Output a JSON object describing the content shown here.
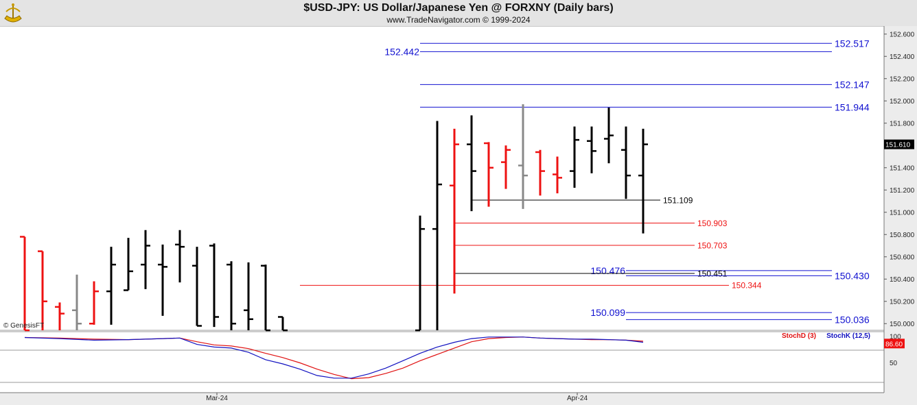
{
  "header": {
    "title": "$USD-JPY:  US Dollar/Japanese Yen @ FORXNY  (Daily bars)",
    "subtitle": "www.TradeNavigator.com © 1999-2024"
  },
  "copyright": "© GenesisFT",
  "indicator": {
    "stochd_label": "StochD (3)",
    "stochk_label": "StochK (12,5)"
  },
  "colors": {
    "up": "#000000",
    "down": "#ee1111",
    "neutral": "#888888",
    "blue": "#1010d0",
    "stochD": "#e01010",
    "stochK": "#1010c0"
  },
  "chart_data": {
    "type": "ohlc_bar",
    "ylim": [
      149.94,
      152.66
    ],
    "x_tick_labels": [
      "Mar-24",
      "Apr-24"
    ],
    "y_tick_labels": [
      "152.600",
      "152.400",
      "152.200",
      "152.000",
      "151.800",
      "151.600",
      "151.400",
      "151.200",
      "151.000",
      "150.800",
      "150.600",
      "150.400",
      "150.200",
      "150.000"
    ],
    "last_price": "151.610",
    "bars": [
      {
        "x": 36,
        "h": 150.78,
        "l": 149.9,
        "o": 150.78,
        "c": 149.9,
        "color": "down"
      },
      {
        "x": 62,
        "h": 150.65,
        "l": 149.9,
        "o": 150.65,
        "c": 150.2,
        "color": "down"
      },
      {
        "x": 87,
        "h": 150.19,
        "l": 149.9,
        "o": 150.15,
        "c": 150.09,
        "color": "down"
      },
      {
        "x": 112,
        "h": 150.44,
        "l": 149.9,
        "o": 150.12,
        "c": 150.0,
        "color": "neutral"
      },
      {
        "x": 137,
        "h": 150.38,
        "l": 149.99,
        "o": 150.0,
        "c": 150.29,
        "color": "down"
      },
      {
        "x": 162,
        "h": 150.69,
        "l": 149.99,
        "o": 150.29,
        "c": 150.53,
        "color": "up"
      },
      {
        "x": 187,
        "h": 150.77,
        "l": 150.3,
        "o": 150.3,
        "c": 150.47,
        "color": "up"
      },
      {
        "x": 212,
        "h": 150.84,
        "l": 150.31,
        "o": 150.53,
        "c": 150.7,
        "color": "up"
      },
      {
        "x": 237,
        "h": 150.71,
        "l": 150.07,
        "o": 150.53,
        "c": 150.51,
        "color": "up"
      },
      {
        "x": 262,
        "h": 150.84,
        "l": 150.37,
        "o": 150.71,
        "c": 150.69,
        "color": "up"
      },
      {
        "x": 287,
        "h": 150.69,
        "l": 149.98,
        "o": 150.52,
        "c": 149.98,
        "color": "up"
      },
      {
        "x": 312,
        "h": 150.72,
        "l": 149.97,
        "o": 150.7,
        "c": 150.06,
        "color": "up"
      },
      {
        "x": 337,
        "h": 150.56,
        "l": 149.93,
        "o": 150.53,
        "c": 150.0,
        "color": "up"
      },
      {
        "x": 362,
        "h": 150.55,
        "l": 149.93,
        "o": 150.12,
        "c": 150.04,
        "color": "up"
      },
      {
        "x": 387,
        "h": 150.53,
        "l": 149.93,
        "o": 150.52,
        "c": 149.93,
        "color": "up"
      },
      {
        "x": 412,
        "h": 150.06,
        "l": 149.93,
        "o": 150.06,
        "c": 149.93,
        "color": "up"
      },
      {
        "x": 612,
        "h": 150.97,
        "l": 149.93,
        "o": 149.93,
        "c": 150.85,
        "color": "up"
      },
      {
        "x": 637,
        "h": 151.82,
        "l": 149.93,
        "o": 150.85,
        "c": 151.25,
        "color": "up"
      },
      {
        "x": 662,
        "h": 151.75,
        "l": 150.27,
        "o": 151.24,
        "c": 151.61,
        "color": "down"
      },
      {
        "x": 687,
        "h": 151.87,
        "l": 151.01,
        "o": 151.61,
        "c": 151.37,
        "color": "up"
      },
      {
        "x": 712,
        "h": 151.63,
        "l": 151.05,
        "o": 151.62,
        "c": 151.4,
        "color": "down"
      },
      {
        "x": 737,
        "h": 151.6,
        "l": 151.21,
        "o": 151.45,
        "c": 151.56,
        "color": "down"
      },
      {
        "x": 762,
        "h": 151.97,
        "l": 151.03,
        "o": 151.42,
        "c": 151.33,
        "color": "neutral"
      },
      {
        "x": 787,
        "h": 151.56,
        "l": 151.15,
        "o": 151.54,
        "c": 151.37,
        "color": "down"
      },
      {
        "x": 812,
        "h": 151.5,
        "l": 151.17,
        "o": 151.34,
        "c": 151.31,
        "color": "down"
      },
      {
        "x": 837,
        "h": 151.77,
        "l": 151.22,
        "o": 151.37,
        "c": 151.65,
        "color": "up"
      },
      {
        "x": 862,
        "h": 151.77,
        "l": 151.35,
        "o": 151.64,
        "c": 151.55,
        "color": "up"
      },
      {
        "x": 887,
        "h": 151.94,
        "l": 151.44,
        "o": 151.66,
        "c": 151.69,
        "color": "up"
      },
      {
        "x": 912,
        "h": 151.77,
        "l": 151.12,
        "o": 151.56,
        "c": 151.33,
        "color": "up"
      },
      {
        "x": 937,
        "h": 151.75,
        "l": 150.81,
        "o": 151.33,
        "c": 151.61,
        "color": "up"
      }
    ],
    "levels": [
      {
        "value": 152.517,
        "label": "152.517",
        "color": "blue",
        "x1": 612,
        "x2": 1212,
        "label_side": "right"
      },
      {
        "value": 152.442,
        "label": "152.442",
        "color": "blue",
        "x1": 612,
        "x2": 1212,
        "label_side": "left"
      },
      {
        "value": 152.147,
        "label": "152.147",
        "color": "blue",
        "x1": 612,
        "x2": 1212,
        "label_side": "right"
      },
      {
        "value": 151.944,
        "label": "151.944",
        "color": "blue",
        "x1": 612,
        "x2": 1212,
        "label_side": "right"
      },
      {
        "value": 151.109,
        "label": "151.109",
        "color": "black",
        "x1": 687,
        "x2": 962,
        "label_side": "right"
      },
      {
        "value": 150.903,
        "label": "150.903",
        "color": "red",
        "x1": 662,
        "x2": 1012,
        "label_side": "right"
      },
      {
        "value": 150.703,
        "label": "150.703",
        "color": "red",
        "x1": 662,
        "x2": 1012,
        "label_side": "right"
      },
      {
        "value": 150.476,
        "label": "150.476",
        "color": "blue",
        "x1": 912,
        "x2": 1212,
        "label_side": "left"
      },
      {
        "value": 150.451,
        "label": "150.451",
        "color": "black",
        "x1": 662,
        "x2": 1012,
        "label_side": "right"
      },
      {
        "value": 150.43,
        "label": "150.430",
        "color": "blue",
        "x1": 912,
        "x2": 1212,
        "label_side": "right"
      },
      {
        "value": 150.344,
        "label": "150.344",
        "color": "red",
        "x1": 437,
        "x2": 1062,
        "label_side": "right"
      },
      {
        "value": 150.099,
        "label": "150.099",
        "color": "blue",
        "x1": 912,
        "x2": 1212,
        "label_side": "left"
      },
      {
        "value": 150.036,
        "label": "150.036",
        "color": "blue",
        "x1": 912,
        "x2": 1212,
        "label_side": "right"
      }
    ],
    "stochastic": {
      "ylim": [
        0,
        100
      ],
      "y_tick_labels": [
        "100",
        "50"
      ],
      "last_value": "86.60",
      "stochD": [
        [
          36,
          98
        ],
        [
          87,
          97
        ],
        [
          137,
          95
        ],
        [
          187,
          94
        ],
        [
          237,
          96
        ],
        [
          262,
          97
        ],
        [
          287,
          90
        ],
        [
          312,
          84
        ],
        [
          337,
          82
        ],
        [
          362,
          77
        ],
        [
          387,
          68
        ],
        [
          412,
          60
        ],
        [
          437,
          50
        ],
        [
          462,
          38
        ],
        [
          487,
          28
        ],
        [
          512,
          20
        ],
        [
          537,
          22
        ],
        [
          562,
          30
        ],
        [
          587,
          40
        ],
        [
          612,
          54
        ],
        [
          637,
          66
        ],
        [
          662,
          78
        ],
        [
          687,
          90
        ],
        [
          712,
          96
        ],
        [
          737,
          98
        ],
        [
          762,
          99
        ],
        [
          787,
          97
        ],
        [
          812,
          96
        ],
        [
          837,
          95
        ],
        [
          862,
          94
        ],
        [
          887,
          94
        ],
        [
          912,
          93
        ],
        [
          937,
          91
        ]
      ],
      "stochK": [
        [
          36,
          98
        ],
        [
          87,
          96
        ],
        [
          137,
          93
        ],
        [
          187,
          94
        ],
        [
          237,
          96
        ],
        [
          262,
          97
        ],
        [
          287,
          85
        ],
        [
          312,
          80
        ],
        [
          337,
          78
        ],
        [
          362,
          70
        ],
        [
          387,
          56
        ],
        [
          412,
          48
        ],
        [
          437,
          38
        ],
        [
          462,
          26
        ],
        [
          487,
          21
        ],
        [
          512,
          21
        ],
        [
          537,
          29
        ],
        [
          562,
          40
        ],
        [
          587,
          54
        ],
        [
          612,
          68
        ],
        [
          637,
          80
        ],
        [
          662,
          89
        ],
        [
          687,
          96
        ],
        [
          712,
          99
        ],
        [
          737,
          99
        ],
        [
          762,
          99
        ],
        [
          787,
          97
        ],
        [
          812,
          96
        ],
        [
          837,
          95
        ],
        [
          862,
          95
        ],
        [
          887,
          94
        ],
        [
          912,
          93
        ],
        [
          937,
          89
        ]
      ]
    }
  }
}
